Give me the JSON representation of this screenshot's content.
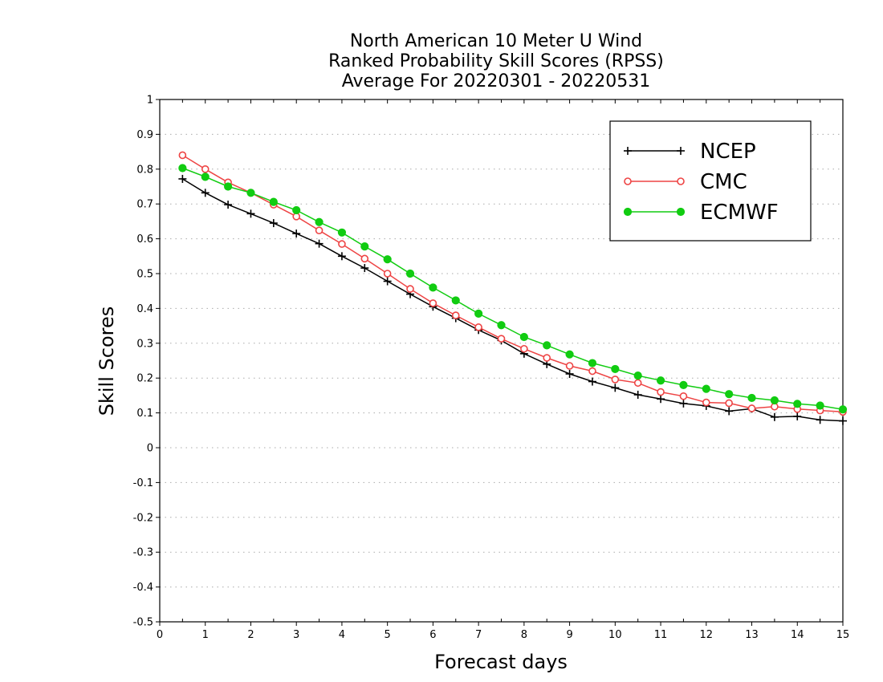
{
  "chart_data": {
    "type": "line",
    "title_lines": [
      "North American 10 Meter U Wind",
      "Ranked Probability Skill Scores (RPSS)",
      "Average For 20220301 - 20220531"
    ],
    "xlabel": "Forecast days",
    "ylabel": "Skill Scores",
    "xlim": [
      0,
      15
    ],
    "ylim": [
      -0.5,
      1
    ],
    "x_ticks": [
      0,
      1,
      2,
      3,
      4,
      5,
      6,
      7,
      8,
      9,
      10,
      11,
      12,
      13,
      14,
      15
    ],
    "y_ticks": [
      -0.5,
      -0.4,
      -0.3,
      -0.2,
      -0.1,
      0,
      0.1,
      0.2,
      0.3,
      0.4,
      0.5,
      0.6,
      0.7,
      0.8,
      0.9,
      1
    ],
    "x_tick_labels": [
      "0",
      "1",
      "2",
      "3",
      "4",
      "5",
      "6",
      "7",
      "8",
      "9",
      "10",
      "11",
      "12",
      "13",
      "14",
      "15"
    ],
    "y_tick_labels": [
      "-0.5",
      "-0.4",
      "-0.3",
      "-0.2",
      "-0.1",
      "0",
      "0.1",
      "0.2",
      "0.3",
      "0.4",
      "0.5",
      "0.6",
      "0.7",
      "0.8",
      "0.9",
      "1"
    ],
    "grid": "horizontal dotted",
    "legend_position": "top-right",
    "x": [
      0.5,
      1,
      1.5,
      2,
      2.5,
      3,
      3.5,
      4,
      4.5,
      5,
      5.5,
      6,
      6.5,
      7,
      7.5,
      8,
      8.5,
      9,
      9.5,
      10,
      10.5,
      11,
      11.5,
      12,
      12.5,
      13,
      13.5,
      14,
      14.5,
      15
    ],
    "series": [
      {
        "name": "NCEP",
        "color": "#000000",
        "marker": "plus",
        "values": [
          0.772,
          0.732,
          0.698,
          0.672,
          0.645,
          0.615,
          0.586,
          0.55,
          0.516,
          0.478,
          0.441,
          0.405,
          0.372,
          0.338,
          0.308,
          0.27,
          0.24,
          0.212,
          0.19,
          0.172,
          0.152,
          0.14,
          0.127,
          0.12,
          0.105,
          0.112,
          0.088,
          0.09,
          0.08,
          0.077
        ]
      },
      {
        "name": "CMC",
        "color": "#ee4444",
        "marker": "open-circle",
        "values": [
          0.84,
          0.8,
          0.762,
          0.732,
          0.698,
          0.664,
          0.624,
          0.585,
          0.543,
          0.5,
          0.456,
          0.415,
          0.38,
          0.346,
          0.313,
          0.284,
          0.258,
          0.235,
          0.22,
          0.196,
          0.186,
          0.16,
          0.148,
          0.13,
          0.128,
          0.113,
          0.118,
          0.111,
          0.107,
          0.103
        ]
      },
      {
        "name": "ECMWF",
        "color": "#11cc11",
        "marker": "filled-circle",
        "values": [
          0.803,
          0.778,
          0.75,
          0.732,
          0.706,
          0.682,
          0.648,
          0.618,
          0.578,
          0.541,
          0.5,
          0.46,
          0.423,
          0.385,
          0.352,
          0.318,
          0.294,
          0.268,
          0.243,
          0.226,
          0.207,
          0.193,
          0.18,
          0.169,
          0.154,
          0.143,
          0.136,
          0.126,
          0.121,
          0.11
        ]
      }
    ]
  }
}
